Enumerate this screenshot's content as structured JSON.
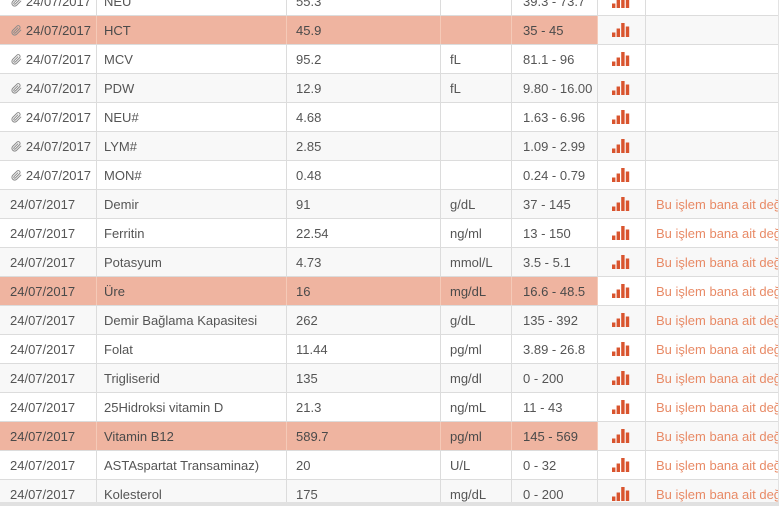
{
  "action_label": "Bu işlem bana ait değil!",
  "colors": {
    "highlight_row": "#efb4a0",
    "stripe_row": "#f8f8f8",
    "border": "#dcdcdc",
    "chart_icon": "#d9542e",
    "action_link": "#e88a66",
    "text": "#555555"
  },
  "icons": {
    "attachment": "paperclip-icon",
    "chart": "bar-chart-icon"
  },
  "table": {
    "columns": [
      "date",
      "test-name",
      "value",
      "unit",
      "reference-range",
      "chart",
      "action"
    ],
    "rows": [
      {
        "date": "24/07/2017",
        "attachment": true,
        "name": "NEU",
        "value": "55.3",
        "unit": "",
        "range": "39.3 - 73.7",
        "highlight": false,
        "action": false
      },
      {
        "date": "24/07/2017",
        "attachment": true,
        "name": "HCT",
        "value": "45.9",
        "unit": "",
        "range": "35 - 45",
        "highlight": true,
        "action": false
      },
      {
        "date": "24/07/2017",
        "attachment": true,
        "name": "MCV",
        "value": "95.2",
        "unit": "fL",
        "range": "81.1 - 96",
        "highlight": false,
        "action": false
      },
      {
        "date": "24/07/2017",
        "attachment": true,
        "name": "PDW",
        "value": "12.9",
        "unit": "fL",
        "range": "9.80 - 16.00",
        "highlight": false,
        "action": false
      },
      {
        "date": "24/07/2017",
        "attachment": true,
        "name": "NEU#",
        "value": "4.68",
        "unit": "",
        "range": "1.63 - 6.96",
        "highlight": false,
        "action": false
      },
      {
        "date": "24/07/2017",
        "attachment": true,
        "name": "LYM#",
        "value": "2.85",
        "unit": "",
        "range": "1.09 - 2.99",
        "highlight": false,
        "action": false
      },
      {
        "date": "24/07/2017",
        "attachment": true,
        "name": "MON#",
        "value": "0.48",
        "unit": "",
        "range": "0.24 - 0.79",
        "highlight": false,
        "action": false
      },
      {
        "date": "24/07/2017",
        "attachment": false,
        "name": "Demir",
        "value": "91",
        "unit": "g/dL",
        "range": "37 - 145",
        "highlight": false,
        "action": true
      },
      {
        "date": "24/07/2017",
        "attachment": false,
        "name": "Ferritin",
        "value": "22.54",
        "unit": "ng/ml",
        "range": "13 - 150",
        "highlight": false,
        "action": true
      },
      {
        "date": "24/07/2017",
        "attachment": false,
        "name": "Potasyum",
        "value": "4.73",
        "unit": "mmol/L",
        "range": "3.5 - 5.1",
        "highlight": false,
        "action": true
      },
      {
        "date": "24/07/2017",
        "attachment": false,
        "name": "Üre",
        "value": "16",
        "unit": "mg/dL",
        "range": "16.6 - 48.5",
        "highlight": true,
        "action": true
      },
      {
        "date": "24/07/2017",
        "attachment": false,
        "name": "Demir Bağlama Kapasitesi",
        "value": "262",
        "unit": "g/dL",
        "range": "135 - 392",
        "highlight": false,
        "action": true
      },
      {
        "date": "24/07/2017",
        "attachment": false,
        "name": "Folat",
        "value": "11.44",
        "unit": "pg/ml",
        "range": "3.89 - 26.8",
        "highlight": false,
        "action": true
      },
      {
        "date": "24/07/2017",
        "attachment": false,
        "name": "Trigliserid",
        "value": "135",
        "unit": "mg/dl",
        "range": "0 - 200",
        "highlight": false,
        "action": true
      },
      {
        "date": "24/07/2017",
        "attachment": false,
        "name": "25Hidroksi vitamin D",
        "value": "21.3",
        "unit": "ng/mL",
        "range": "11 - 43",
        "highlight": false,
        "action": true
      },
      {
        "date": "24/07/2017",
        "attachment": false,
        "name": "Vitamin B12",
        "value": "589.7",
        "unit": "pg/ml",
        "range": "145 - 569",
        "highlight": true,
        "action": true
      },
      {
        "date": "24/07/2017",
        "attachment": false,
        "name": "ASTAspartat Transaminaz)",
        "value": "20",
        "unit": "U/L",
        "range": "0 - 32",
        "highlight": false,
        "action": true
      },
      {
        "date": "24/07/2017",
        "attachment": false,
        "name": "Kolesterol",
        "value": "175",
        "unit": "mg/dL",
        "range": "0 - 200",
        "highlight": false,
        "action": true
      }
    ]
  }
}
